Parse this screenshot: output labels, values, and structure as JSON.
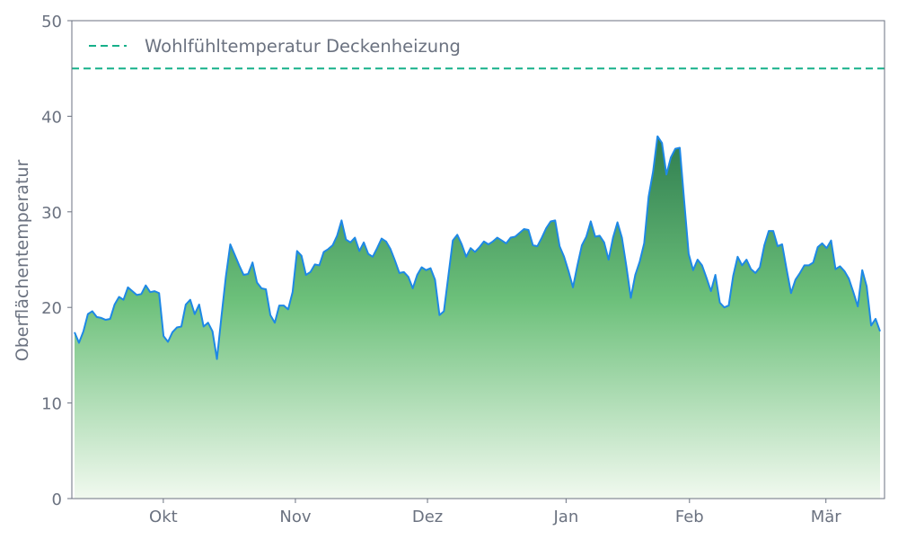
{
  "chart_data": {
    "type": "area",
    "title": "",
    "xlabel": "",
    "ylabel": "Oberflächentemperatur",
    "ylim": [
      0,
      50
    ],
    "yticks": [
      0,
      10,
      20,
      30,
      40,
      50
    ],
    "x_tick_labels": [
      "Okt",
      "Nov",
      "Dez",
      "Jan",
      "Feb",
      "Mär"
    ],
    "x_tick_positions": [
      20.5,
      51,
      81.5,
      113.5,
      142,
      173.5
    ],
    "xlim": [
      0,
      186
    ],
    "grid": false,
    "legend_position": "top-left",
    "series": [
      {
        "values": [
          17.4,
          16.3,
          17.5,
          19.3,
          19.6,
          19.0,
          18.9,
          18.7,
          18.8,
          20.3,
          21.1,
          20.8,
          22.1,
          21.7,
          21.3,
          21.4,
          22.3,
          21.6,
          21.7,
          21.5,
          17.0,
          16.4,
          17.4,
          17.9,
          18.0,
          20.3,
          20.8,
          19.3,
          20.3,
          18.0,
          18.4,
          17.5,
          14.6,
          19.0,
          23.2,
          26.6,
          25.5,
          24.4,
          23.4,
          23.5,
          24.7,
          22.6,
          22.0,
          21.9,
          19.2,
          18.4,
          20.2,
          20.2,
          19.8,
          21.6,
          25.9,
          25.4,
          23.4,
          23.7,
          24.5,
          24.4,
          25.8,
          26.1,
          26.5,
          27.5,
          29.1,
          27.1,
          26.8,
          27.3,
          25.9,
          26.8,
          25.6,
          25.3,
          26.2,
          27.2,
          26.9,
          26.1,
          24.9,
          23.6,
          23.7,
          23.2,
          22.0,
          23.4,
          24.2,
          23.9,
          24.1,
          22.9,
          19.2,
          19.6,
          23.3,
          27.0,
          27.6,
          26.6,
          25.3,
          26.2,
          25.8,
          26.3,
          26.9,
          26.6,
          26.9,
          27.3,
          27.0,
          26.7,
          27.3,
          27.4,
          27.8,
          28.2,
          28.1,
          26.5,
          26.4,
          27.3,
          28.3,
          29.0,
          29.1,
          26.4,
          25.3,
          23.8,
          22.1,
          24.4,
          26.5,
          27.4,
          29.0,
          27.4,
          27.5,
          26.8,
          25.0,
          27.3,
          28.9,
          27.3,
          24.3,
          21.0,
          23.4,
          24.8,
          26.7,
          31.6,
          34.2,
          37.9,
          37.2,
          33.9,
          35.7,
          36.6,
          36.7,
          31.1,
          25.6,
          23.9,
          25.0,
          24.4,
          23.1,
          21.7,
          23.4,
          20.5,
          20.0,
          20.2,
          23.3,
          25.3,
          24.4,
          25.0,
          24.0,
          23.6,
          24.2,
          26.5,
          28.0,
          28.0,
          26.4,
          26.6,
          24.0,
          21.5,
          22.9,
          23.6,
          24.4,
          24.4,
          24.7,
          26.3,
          26.7,
          26.2,
          27.0,
          24.0,
          24.3,
          23.8,
          23.0,
          21.6,
          20.1,
          23.9,
          22.2,
          18.1,
          18.8,
          17.5
        ]
      }
    ],
    "reference_line": {
      "label": "Wohlfühltemperatur Deckenheizung",
      "value": 45
    },
    "colors": {
      "line": "#1e88e5",
      "fill_top": "#2e7d4f",
      "fill_mid": "#6cc07a",
      "fill_bottom": "#f1f9ef",
      "reference": "#16b08a",
      "axis": "#6b7280"
    }
  }
}
